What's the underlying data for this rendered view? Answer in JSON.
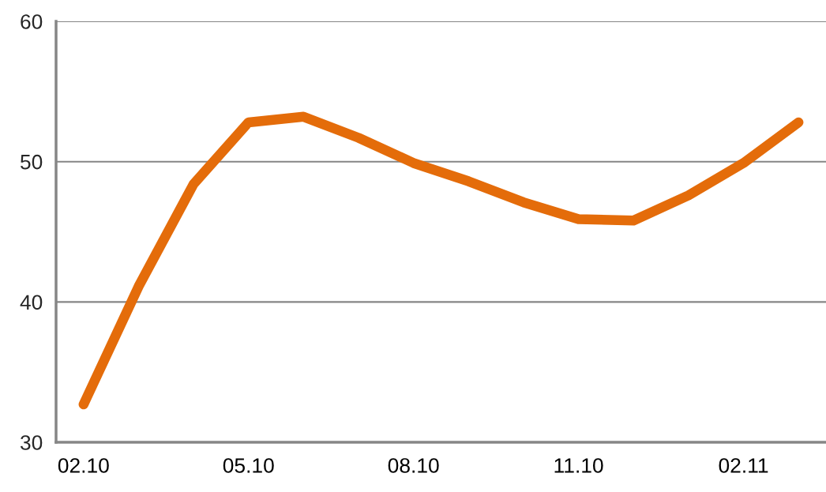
{
  "chart_data": {
    "type": "line",
    "categories": [
      "02.10",
      null,
      null,
      "05.10",
      null,
      null,
      "08.10",
      null,
      null,
      "11.10",
      null,
      null,
      "02.11",
      null
    ],
    "series": [
      {
        "color": "#e46c0a",
        "values": [
          32.7,
          41.1,
          48.4,
          52.8,
          53.2,
          51.7,
          49.9,
          48.6,
          47.1,
          45.9,
          45.8,
          47.6,
          49.9,
          52.8
        ]
      }
    ],
    "ylim": [
      30,
      60
    ],
    "yticks": [
      30,
      40,
      50,
      60
    ],
    "grid": "y",
    "line_style": "solid",
    "legend": false
  }
}
